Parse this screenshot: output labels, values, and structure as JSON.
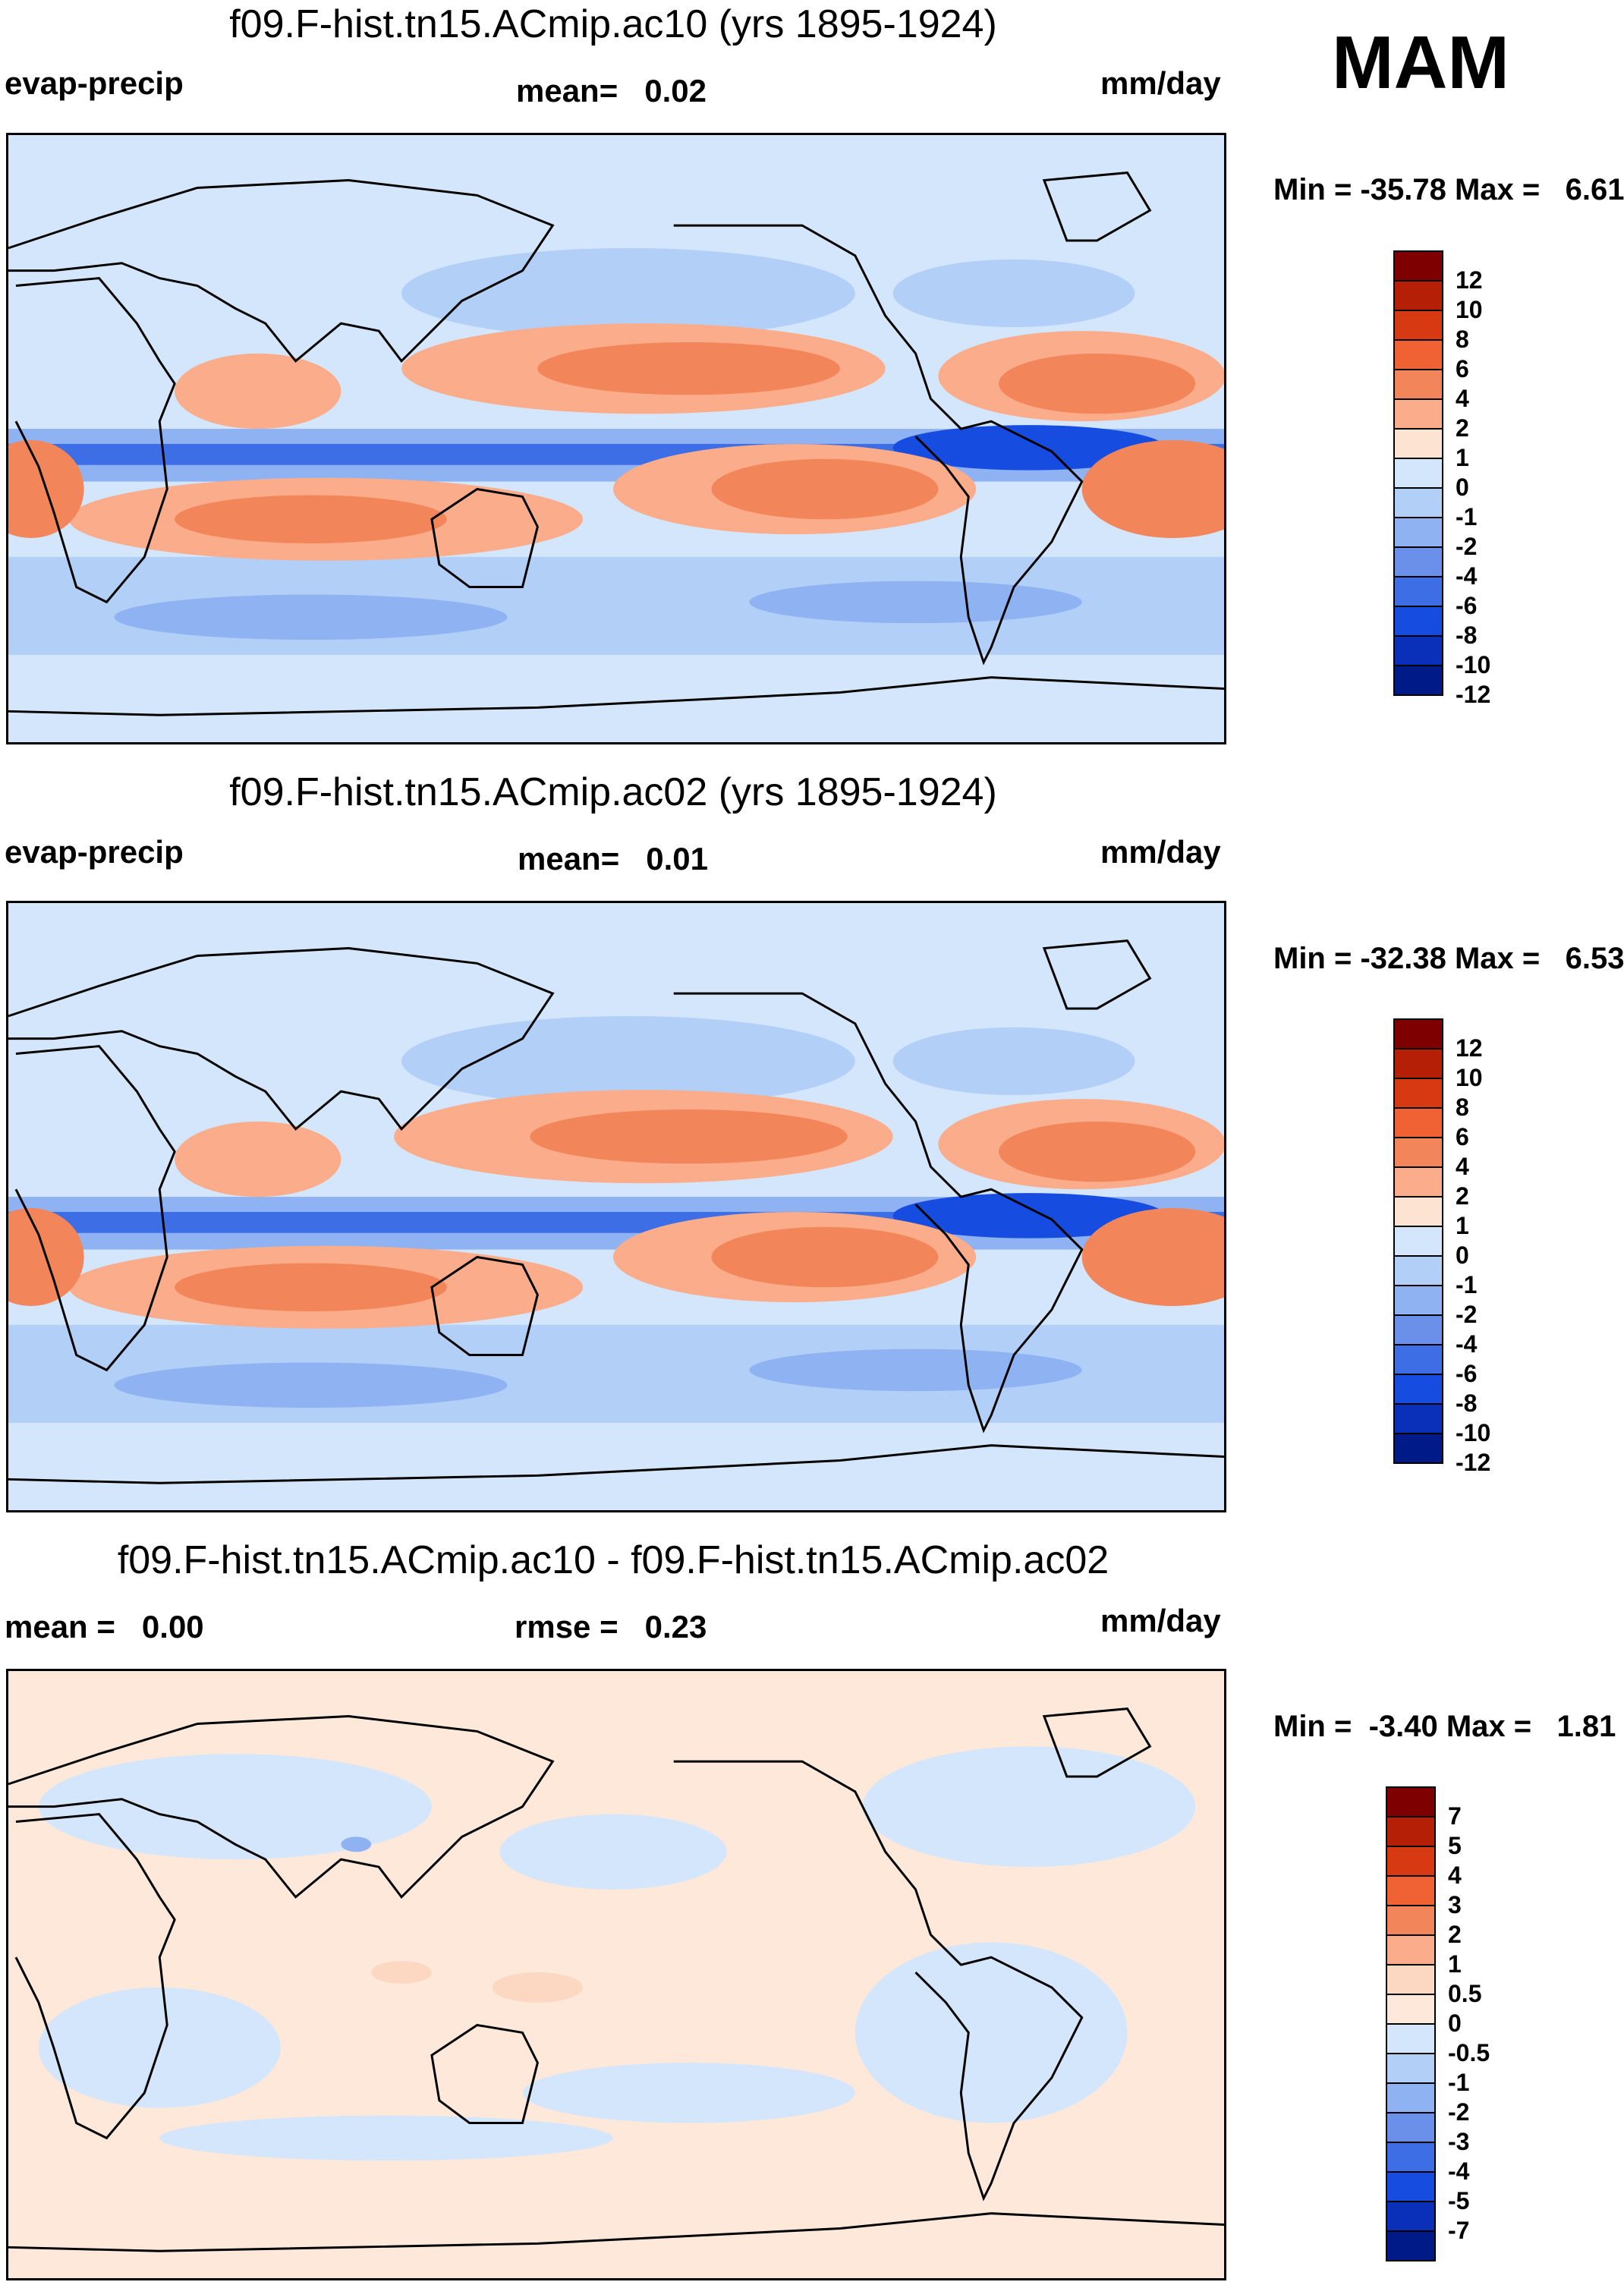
{
  "season": "MAM",
  "panels": [
    {
      "id": "ac10",
      "title": "f09.F-hist.tn15.ACmip.ac10 (yrs 1895-1924)",
      "left_label": "evap-precip",
      "center_label": "mean=   0.02",
      "right_label": "mm/day",
      "minmax": "Min = -35.78 Max =   6.61",
      "colorbar": {
        "colors": [
          "#7f0000",
          "#b51f06",
          "#d73a12",
          "#f06234",
          "#f3855a",
          "#fbac8a",
          "#fde4d2",
          "#d4e6fb",
          "#b2cff7",
          "#8fb2f2",
          "#6b90ea",
          "#3e6ee6",
          "#174ce0",
          "#0a2fb8",
          "#001b88"
        ],
        "labels": [
          "12",
          "10",
          "8",
          "6",
          "4",
          "2",
          "1",
          "0",
          "-1",
          "-2",
          "-4",
          "-6",
          "-8",
          "-10",
          "-12"
        ]
      }
    },
    {
      "id": "ac02",
      "title": "f09.F-hist.tn15.ACmip.ac02 (yrs 1895-1924)",
      "left_label": "evap-precip",
      "center_label": "mean=   0.01",
      "right_label": "mm/day",
      "minmax": "Min = -32.38 Max =   6.53",
      "colorbar": {
        "colors": [
          "#7f0000",
          "#b51f06",
          "#d73a12",
          "#f06234",
          "#f3855a",
          "#fbac8a",
          "#fde4d2",
          "#d4e6fb",
          "#b2cff7",
          "#8fb2f2",
          "#6b90ea",
          "#3e6ee6",
          "#174ce0",
          "#0a2fb8",
          "#001b88"
        ],
        "labels": [
          "12",
          "10",
          "8",
          "6",
          "4",
          "2",
          "1",
          "0",
          "-1",
          "-2",
          "-4",
          "-6",
          "-8",
          "-10",
          "-12"
        ]
      }
    },
    {
      "id": "diff",
      "title": "f09.F-hist.tn15.ACmip.ac10 - f09.F-hist.tn15.ACmip.ac02",
      "left_label": "mean =   0.00",
      "center_label": "rmse =   0.23",
      "right_label": "mm/day",
      "minmax": "Min =  -3.40 Max =   1.81",
      "colorbar": {
        "colors": [
          "#7f0000",
          "#b51f06",
          "#d73a12",
          "#f06234",
          "#f3855a",
          "#fbac8a",
          "#fcd7c2",
          "#fde8da",
          "#d4e6fb",
          "#b2cff7",
          "#8fb2f2",
          "#6b90ea",
          "#3e6ee6",
          "#174ce0",
          "#0a2fb8",
          "#001b88"
        ],
        "labels": [
          "7",
          "5",
          "4",
          "3",
          "2",
          "1",
          "0.5",
          "0",
          "-0.5",
          "-1",
          "-2",
          "-3",
          "-4",
          "-5",
          "-7"
        ]
      }
    }
  ]
}
